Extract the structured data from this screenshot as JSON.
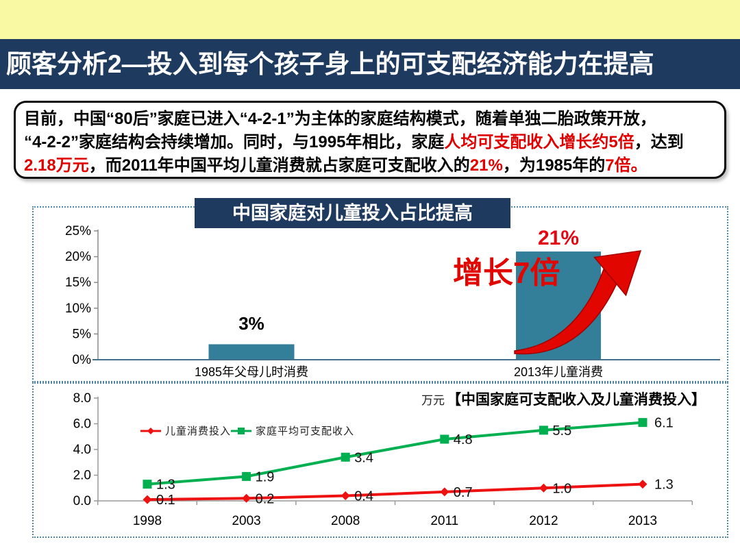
{
  "theme": {
    "top_band_color": "#F8F9A2",
    "header_bg": "#1F3A5F",
    "panel_border_color": "#4E87A6",
    "accent_red": "#E00000"
  },
  "header": {
    "title": "顾客分析2—投入到每个孩子身上的可支配经济能力在提高"
  },
  "summary": {
    "segments": [
      {
        "text": "目前，中国“80后”家庭已进入“4-2-1”为主体的家庭结构模式，随着单独二胎政策开放，",
        "color": "black"
      },
      {
        "break": true
      },
      {
        "text": "“4-2-2”家庭结构会持续增加。同时，与1995年相比，家庭",
        "color": "black"
      },
      {
        "text": "人均可支配收入增长约5倍",
        "color": "red"
      },
      {
        "text": "，达到",
        "color": "black"
      },
      {
        "break": true
      },
      {
        "text": "2.18万元",
        "color": "red"
      },
      {
        "text": "，而2011年中国平均儿童消费就占家庭可支配收入的",
        "color": "black"
      },
      {
        "text": "21%",
        "color": "red"
      },
      {
        "text": "，为1985年的",
        "color": "black"
      },
      {
        "text": "7倍。",
        "color": "red"
      }
    ]
  },
  "chart_data": [
    {
      "type": "bar",
      "title": "中国家庭对儿童投入占比提高",
      "categories": [
        "1985年父母儿时消费",
        "2013年儿童消费"
      ],
      "values": [
        3,
        21
      ],
      "value_labels": [
        "3%",
        "21%"
      ],
      "ylim": [
        0,
        25
      ],
      "yticks": [
        {
          "v": 0,
          "label": "0%"
        },
        {
          "v": 5,
          "label": "5%"
        },
        {
          "v": 10,
          "label": "10%"
        },
        {
          "v": 15,
          "label": "15%"
        },
        {
          "v": 20,
          "label": "20%"
        },
        {
          "v": 25,
          "label": "25%"
        }
      ],
      "bar_color": "#337F99",
      "annotation": "增长7倍",
      "annotation_color": "#E10600",
      "value_label_colors": [
        "#000000",
        "#E30613"
      ],
      "grid": false,
      "legend_position": "none"
    },
    {
      "type": "line",
      "title": "【中国家庭可支配收入及儿童消费投入】",
      "unit_label": "万元",
      "categories": [
        "1998",
        "2003",
        "2008",
        "2011",
        "2012",
        "2013"
      ],
      "series": [
        {
          "name": "儿童消费投入",
          "color": "#EE1111",
          "marker": "diamond",
          "values": [
            0.1,
            0.2,
            0.4,
            0.7,
            1.0,
            1.3
          ]
        },
        {
          "name": "家庭平均可支配收入",
          "color": "#00B050",
          "marker": "square",
          "values": [
            1.3,
            1.9,
            3.4,
            4.8,
            5.5,
            6.1
          ]
        }
      ],
      "ylim": [
        0,
        8
      ],
      "yticks": [
        {
          "v": 0,
          "label": "0.0"
        },
        {
          "v": 2,
          "label": "2.0"
        },
        {
          "v": 4,
          "label": "4.0"
        },
        {
          "v": 6,
          "label": "6.0"
        },
        {
          "v": 8,
          "label": "8.0"
        }
      ],
      "grid": false,
      "legend_position": "inside-top-left"
    }
  ]
}
